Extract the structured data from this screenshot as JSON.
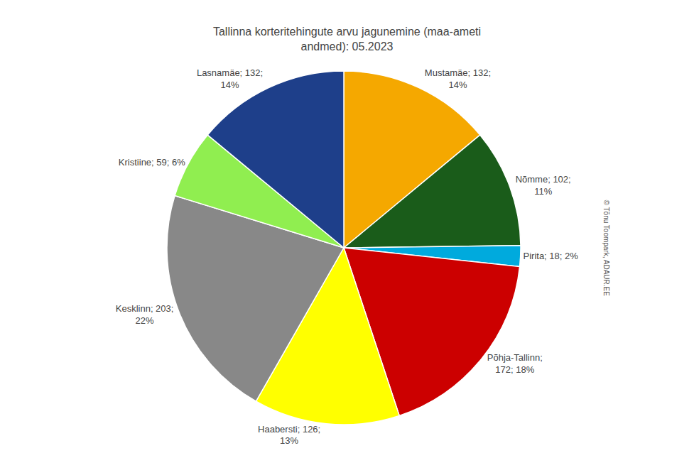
{
  "chart_data": {
    "type": "pie",
    "title": "Tallinna korteritehingute arvu jagunemine (maa-ameti\nandmed): 05.2023",
    "categories": [
      "Mustamäe",
      "Nõmme",
      "Pirita",
      "Põhja-Tallinn",
      "Haabersti",
      "Kesklinn",
      "Kristiine",
      "Lasnamäe"
    ],
    "values": [
      132,
      102,
      18,
      172,
      126,
      203,
      59,
      132
    ],
    "value_labels": [
      "Mustamäe; 132;\n14%",
      "Nõmme; 102;\n11%",
      "Pirita; 18; 2%",
      "Põhja-Tallinn;\n172; 18%",
      "Haabersti; 126;\n13%",
      "Kesklinn; 203;\n22%",
      "Kristiine; 59; 6%",
      "Lasnamäe; 132;\n14%"
    ],
    "colors": [
      "#F5A800",
      "#1a5c1a",
      "#00AADD",
      "#CC0000",
      "#FFFF00",
      "#888888",
      "#90EE50",
      "#1E3F8A"
    ],
    "data_labels": true,
    "legend": false,
    "annotations": [
      "© Tõnu Toompark, ADAUR.EE"
    ]
  }
}
